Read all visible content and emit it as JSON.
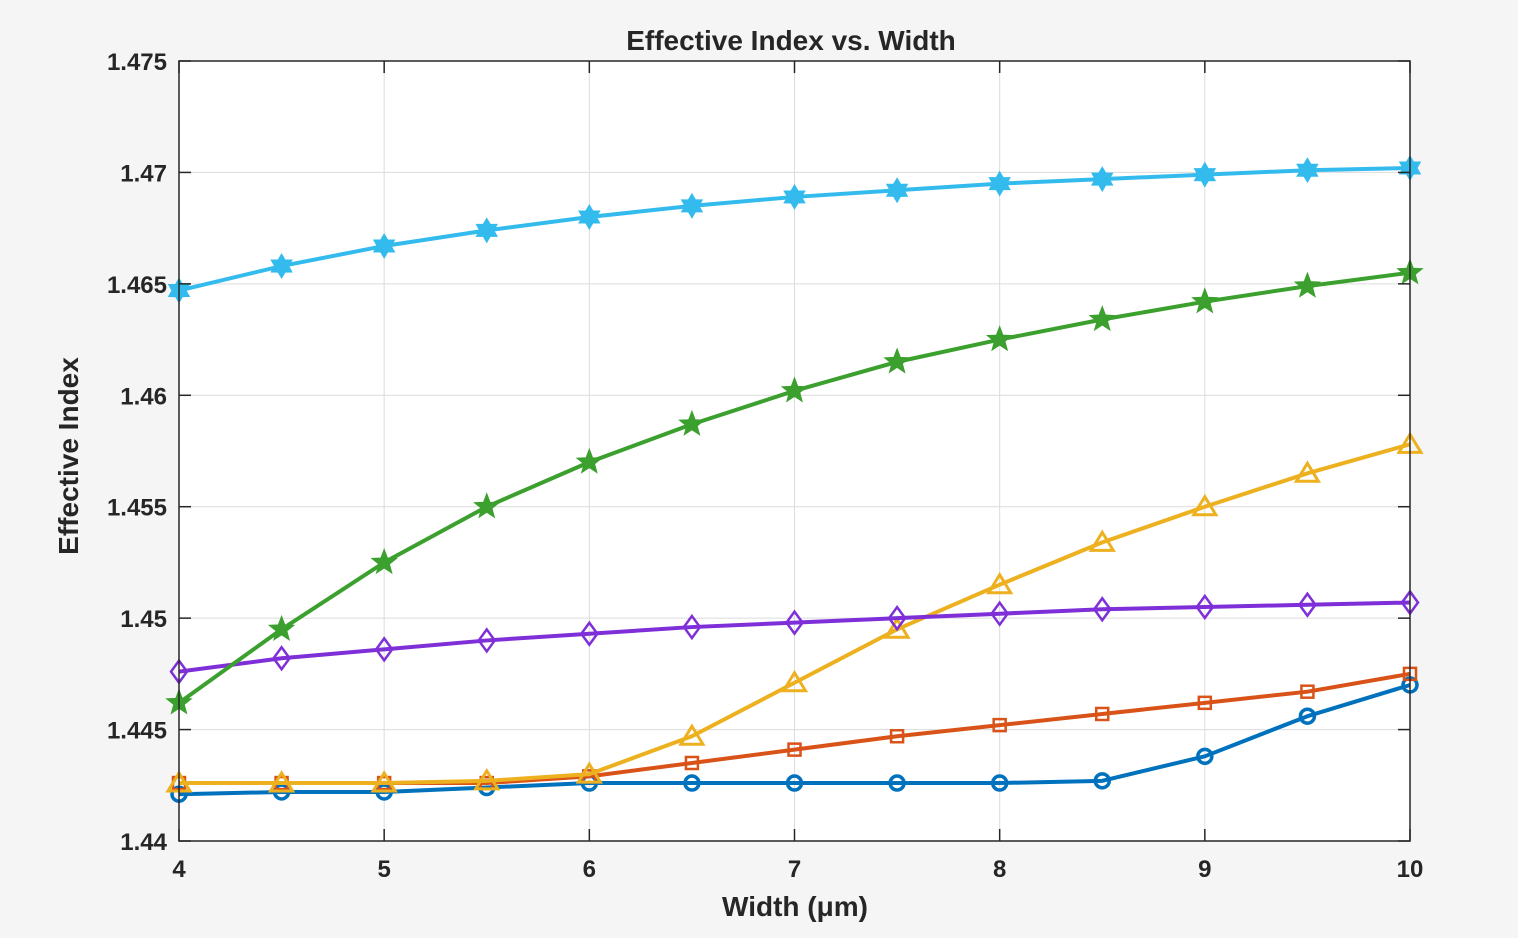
{
  "chart_data": {
    "type": "line",
    "title": "Effective Index vs. Width",
    "xlabel": "Width (μm)",
    "ylabel": "Effective Index",
    "xlim": [
      4,
      10
    ],
    "ylim": [
      1.44,
      1.475
    ],
    "xticks": [
      4,
      5,
      6,
      7,
      8,
      9,
      10
    ],
    "yticks": [
      1.44,
      1.445,
      1.45,
      1.455,
      1.46,
      1.465,
      1.47,
      1.475
    ],
    "xtick_labels": [
      "4",
      "5",
      "6",
      "7",
      "8",
      "9",
      "10"
    ],
    "ytick_labels": [
      "1.44",
      "1.445",
      "1.45",
      "1.455",
      "1.46",
      "1.465",
      "1.47",
      "1.475"
    ],
    "grid": true,
    "x": [
      4,
      4.5,
      5,
      5.5,
      6,
      6.5,
      7,
      7.5,
      8,
      8.5,
      9,
      9.5,
      10
    ],
    "series": [
      {
        "color": "#0072BD",
        "marker": "circle",
        "values": [
          1.4421,
          1.4422,
          1.4422,
          1.4424,
          1.4426,
          1.4426,
          1.4426,
          1.4426,
          1.4426,
          1.4427,
          1.4438,
          1.4456,
          1.447
        ]
      },
      {
        "color": "#D95319",
        "marker": "square",
        "values": [
          1.4426,
          1.4426,
          1.4426,
          1.4426,
          1.4429,
          1.4435,
          1.4441,
          1.4447,
          1.4452,
          1.4457,
          1.4462,
          1.4467,
          1.4475
        ]
      },
      {
        "color": "#EDB120",
        "marker": "triangle",
        "values": [
          1.4426,
          1.4426,
          1.4426,
          1.4427,
          1.443,
          1.4447,
          1.4471,
          1.4495,
          1.4515,
          1.4534,
          1.455,
          1.4565,
          1.4578
        ]
      },
      {
        "color": "#7E2FD8",
        "marker": "diamond",
        "values": [
          1.4476,
          1.4482,
          1.4486,
          1.449,
          1.4493,
          1.4496,
          1.4498,
          1.45,
          1.4502,
          1.4504,
          1.4505,
          1.4506,
          1.4507
        ]
      },
      {
        "color": "#3BA02D",
        "marker": "pentagram",
        "values": [
          1.4462,
          1.4495,
          1.4525,
          1.455,
          1.457,
          1.4587,
          1.4602,
          1.4615,
          1.4625,
          1.4634,
          1.4642,
          1.4649,
          1.4655
        ]
      },
      {
        "color": "#33BBEE",
        "marker": "hexagram",
        "values": [
          1.4647,
          1.4658,
          1.4667,
          1.4674,
          1.468,
          1.4685,
          1.4689,
          1.4692,
          1.4695,
          1.4697,
          1.4699,
          1.4701,
          1.4702
        ]
      }
    ]
  }
}
